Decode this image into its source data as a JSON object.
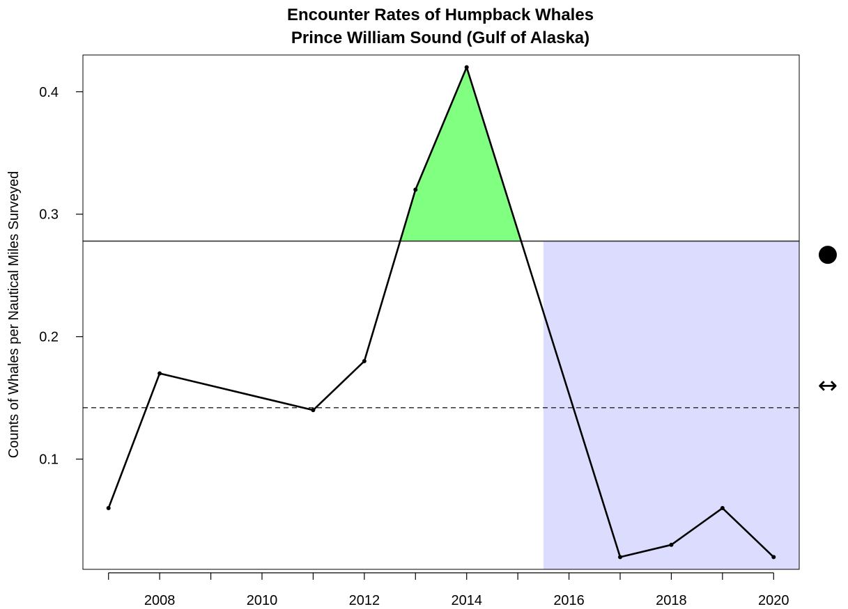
{
  "chart_data": {
    "type": "line",
    "title": "Encounter Rates of Humpback Whales",
    "subtitle": "Prince William Sound (Gulf of Alaska)",
    "xlabel": "",
    "ylabel": "Counts of Whales per Nautical Miles Surveyed",
    "xlim": [
      2006.5,
      2020.5
    ],
    "ylim": [
      0.01,
      0.43
    ],
    "x_ticks_minor": [
      2007,
      2008,
      2009,
      2010,
      2011,
      2012,
      2013,
      2014,
      2015,
      2016,
      2017,
      2018,
      2019,
      2020
    ],
    "x_tick_labels": [
      "2008",
      "2010",
      "2012",
      "2014",
      "2016",
      "2018",
      "2020"
    ],
    "y_ticks": [
      0.1,
      0.2,
      0.3,
      0.4
    ],
    "y_tick_labels": [
      "0.1",
      "0.2",
      "0.3",
      "0.4"
    ],
    "series": [
      {
        "x": [
          2007,
          2008,
          2011,
          2012,
          2013,
          2014,
          2017,
          2018,
          2019,
          2020
        ],
        "y": [
          0.06,
          0.17,
          0.14,
          0.18,
          0.32,
          0.42,
          0.02,
          0.03,
          0.06,
          0.02
        ],
        "color": "#000000"
      }
    ],
    "reference_lines": {
      "upper_solid": 0.278,
      "mean_dashed": 0.142
    },
    "shaded_regions": [
      {
        "kind": "above-upper",
        "x_range": [
          2012.7,
          2015.1
        ],
        "color": "#80ff80"
      },
      {
        "kind": "recent-period",
        "x_range": [
          2015.5,
          2020.5
        ],
        "y_range": [
          0.01,
          0.278
        ],
        "color": "#dcdcff"
      }
    ],
    "grid": false,
    "legend": "none",
    "side_indicators": [
      {
        "icon": "filled-circle-icon",
        "symbol": "●"
      },
      {
        "icon": "left-right-arrow-icon",
        "symbol": "↔"
      }
    ]
  }
}
